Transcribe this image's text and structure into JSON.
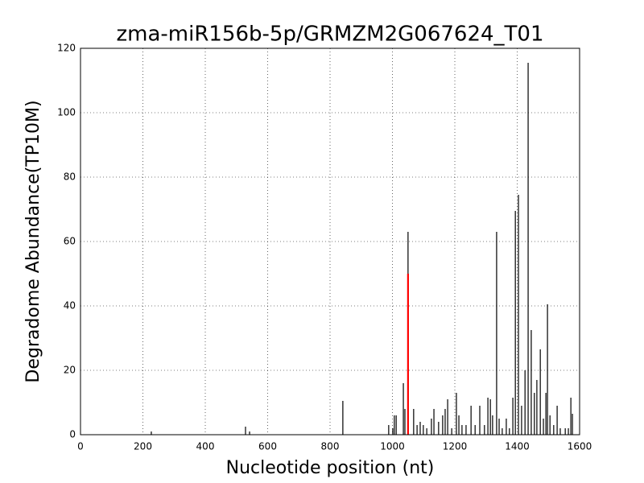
{
  "chart_data": {
    "type": "bar",
    "title": "zma-miR156b-5p/GRMZM2G067624_T01",
    "x_label": "Nucleotide position (nt)",
    "y_label": "Degradome Abundance(TP10M)",
    "xlim": [
      0,
      1600
    ],
    "xticks": [
      0,
      200,
      400,
      600,
      800,
      1000,
      1200,
      1400,
      1600
    ],
    "ylim": [
      0,
      120
    ],
    "yticks": [
      0,
      20,
      40,
      60,
      80,
      100,
      120
    ],
    "grid": true,
    "series": [
      {
        "color": "#000000",
        "x": [
          227,
          529,
          542,
          841,
          988,
          1001,
          1006,
          1012,
          1035,
          1040,
          1050,
          1068,
          1079,
          1089,
          1099,
          1110,
          1125,
          1133,
          1148,
          1161,
          1169,
          1177,
          1190,
          1205,
          1213,
          1223,
          1236,
          1252,
          1265,
          1280,
          1295,
          1306,
          1314,
          1321,
          1334,
          1342,
          1352,
          1365,
          1375,
          1386,
          1394,
          1404,
          1414,
          1425,
          1435,
          1445,
          1455,
          1463,
          1474,
          1484,
          1492,
          1497,
          1505,
          1517,
          1528,
          1538,
          1554,
          1564,
          1572,
          1577
        ],
        "values": [
          1,
          2.5,
          1,
          10.5,
          3,
          2,
          6,
          6,
          16,
          8,
          63,
          8,
          3,
          4,
          3,
          2,
          5,
          8,
          4,
          6,
          8,
          11,
          2,
          13,
          6,
          3,
          3,
          9,
          3,
          9,
          3,
          11.5,
          11,
          6,
          63,
          5,
          2,
          5,
          2,
          11.5,
          69.5,
          74.5,
          9,
          20,
          115.5,
          32.5,
          13,
          17,
          26.5,
          5,
          13,
          40.5,
          6,
          3,
          9,
          2,
          2,
          2,
          11.5,
          6.5
        ]
      },
      {
        "color": "#ff0000",
        "x": [
          1050
        ],
        "values": [
          50
        ]
      }
    ]
  }
}
